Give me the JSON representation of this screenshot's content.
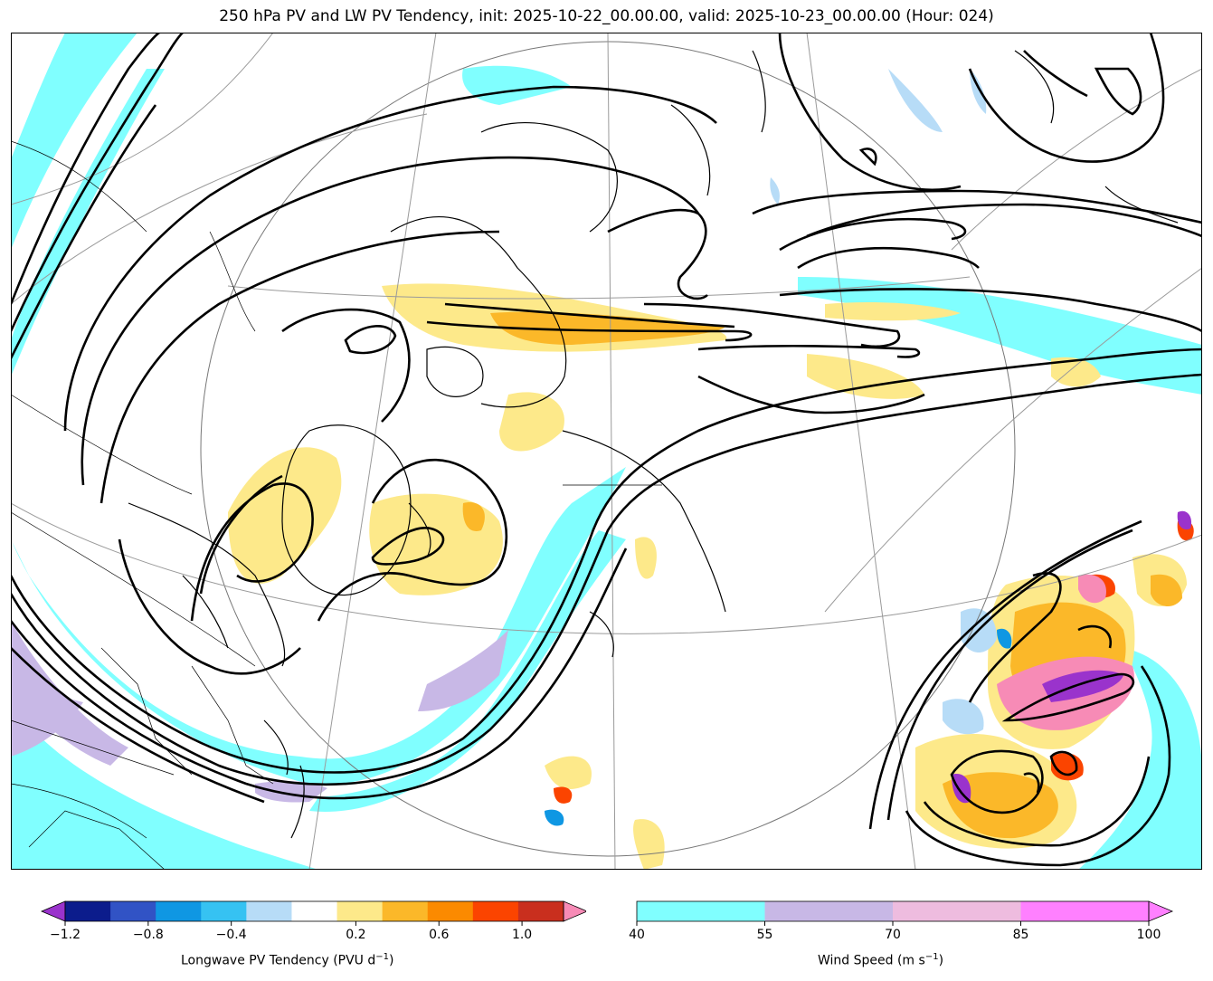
{
  "title": "250 hPa PV and LW PV Tendency, init: 2025-10-22_00.00.00, valid: 2025-10-23_00.00.00 (Hour: 024)",
  "pv_colorbar": {
    "label": "Longwave PV Tendency (PVU d",
    "label_sup": "−1",
    "label_end": ")",
    "ticks": [
      "−1.2",
      "−0.8",
      "−0.4",
      "0.2",
      "0.6",
      "1.0"
    ],
    "tick_values": [
      -1.2,
      -0.8,
      -0.4,
      0.2,
      0.6,
      1.0
    ],
    "range": [
      -1.2,
      1.2
    ],
    "levels": [
      -1.2,
      -1.0,
      -0.8,
      -0.6,
      -0.4,
      -0.2,
      0.2,
      0.4,
      0.6,
      0.8,
      1.0,
      1.2
    ],
    "colors": [
      "#0c1c8c",
      "#3153c5",
      "#0f97e3",
      "#36c2f2",
      "#b7dcf7",
      "#ffffff",
      "#fde98a",
      "#fbb829",
      "#fb8a00",
      "#fb4400",
      "#c92f1e"
    ],
    "under_color": "#9a33cc",
    "over_color": "#f78bb6"
  },
  "wind_colorbar": {
    "label": "Wind Speed (m s",
    "label_sup": "−1",
    "label_end": ")",
    "ticks": [
      "40",
      "55",
      "70",
      "85",
      "100"
    ],
    "tick_values": [
      40,
      55,
      70,
      85,
      100
    ],
    "colors": [
      "#80ffff",
      "#c8b8e6",
      "#eebcdf",
      "#ff80ff"
    ],
    "over_color": "#ff80ff"
  }
}
